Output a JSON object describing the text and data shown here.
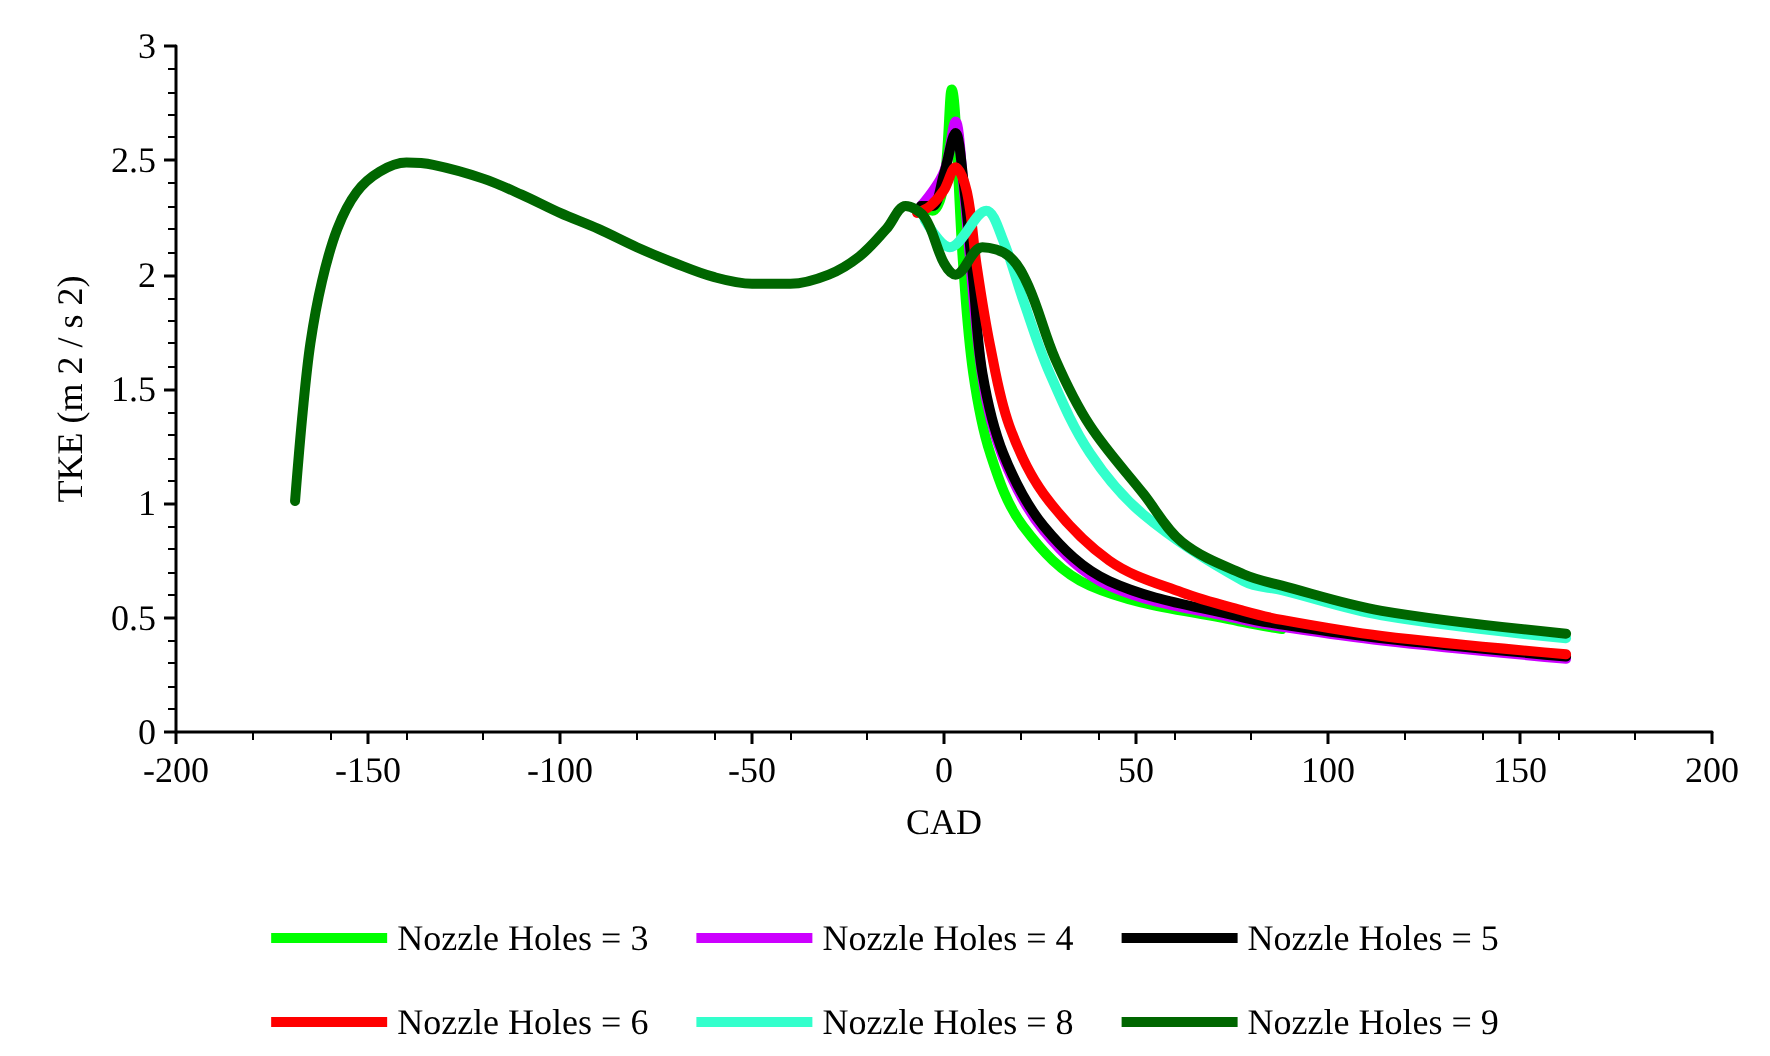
{
  "chart_data": {
    "type": "line",
    "xlabel": "CAD",
    "ylabel": "TKE (m 2 / s 2)",
    "xlim": [
      -200,
      200
    ],
    "xticks": [
      -200,
      -150,
      -100,
      -50,
      0,
      50,
      100,
      150,
      200
    ],
    "ylim": [
      0,
      3
    ],
    "yticks": [
      0,
      0.5,
      1,
      1.5,
      2,
      2.5,
      3
    ],
    "grid": false,
    "legend": "bottom",
    "marker": "none",
    "line_style": "solid",
    "series": [
      {
        "name": "Nozzle Holes = 3",
        "color": "#00ff00",
        "x": [
          -6,
          -3,
          0,
          2,
          5,
          7.6,
          12,
          20.6,
          38,
          78,
          88
        ],
        "values": [
          2.3,
          2.28,
          2.4,
          2.81,
          2.04,
          1.57,
          1.22,
          0.9,
          0.64,
          0.48,
          0.45
        ]
      },
      {
        "name": "Nozzle Holes = 4",
        "color": "#cc00ff",
        "x": [
          -6,
          0,
          3,
          5,
          10,
          15.4,
          26,
          43,
          78,
          88,
          114,
          162
        ],
        "values": [
          2.3,
          2.45,
          2.67,
          2.4,
          1.55,
          1.2,
          0.88,
          0.64,
          0.49,
          0.46,
          0.4,
          0.32
        ]
      },
      {
        "name": "Nozzle Holes = 5",
        "color": "#000000",
        "x": [
          -6,
          -3,
          0,
          3,
          5,
          7.6,
          10,
          15.4,
          26,
          43,
          78,
          88,
          114,
          162
        ],
        "values": [
          2.3,
          2.3,
          2.44,
          2.62,
          2.42,
          1.98,
          1.57,
          1.22,
          0.9,
          0.66,
          0.5,
          0.47,
          0.41,
          0.33
        ]
      },
      {
        "name": "Nozzle Holes = 6",
        "color": "#ff0000",
        "x": [
          -7,
          -3.6,
          0,
          3,
          6,
          8.5,
          12,
          17,
          26,
          43,
          62,
          78,
          88,
          114,
          162
        ],
        "values": [
          2.27,
          2.3,
          2.37,
          2.47,
          2.36,
          2.04,
          1.69,
          1.34,
          1.04,
          0.75,
          0.61,
          0.53,
          0.49,
          0.42,
          0.34
        ]
      },
      {
        "name": "Nozzle Holes = 8",
        "color": "#33ffcc",
        "x": [
          -5,
          1.5,
          11,
          15.4,
          20.6,
          27.5,
          38,
          52,
          78,
          88,
          114,
          162
        ],
        "values": [
          2.24,
          2.12,
          2.28,
          2.15,
          1.89,
          1.57,
          1.22,
          0.95,
          0.66,
          0.62,
          0.51,
          0.41
        ]
      },
      {
        "name": "Nozzle Holes = 9",
        "color": "#006600",
        "x": [
          -169,
          -167,
          -165,
          -162,
          -158,
          -153,
          -147,
          -140,
          -133,
          -120,
          -110,
          -100,
          -90,
          -80,
          -70,
          -60,
          -50,
          -40,
          -30,
          -22,
          -15,
          -10,
          -5,
          0,
          3,
          10,
          17,
          22,
          29,
          38,
          52,
          62,
          78,
          88,
          114,
          162
        ],
        "values": [
          1.01,
          1.4,
          1.7,
          1.97,
          2.2,
          2.36,
          2.45,
          2.49,
          2.48,
          2.42,
          2.35,
          2.27,
          2.2,
          2.12,
          2.05,
          1.99,
          1.96,
          1.96,
          2.0,
          2.08,
          2.2,
          2.3,
          2.25,
          2.05,
          2.0,
          2.12,
          2.08,
          1.95,
          1.63,
          1.34,
          1.04,
          0.83,
          0.69,
          0.64,
          0.53,
          0.43
        ]
      }
    ]
  }
}
